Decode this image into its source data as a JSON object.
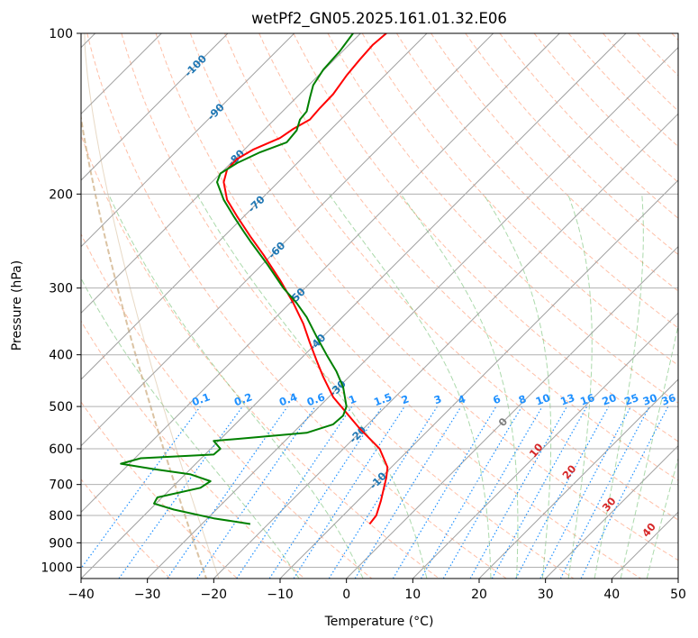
{
  "chart_data": {
    "type": "line",
    "title": "wetPf2_GN05.2025.161.01.32.E06",
    "xlabel": "Temperature (°C)",
    "ylabel": "Pressure (hPa)",
    "xlim": [
      -40,
      50
    ],
    "ylim": [
      1050,
      100
    ],
    "y_scale": "log",
    "x_ticks": [
      -40,
      -30,
      -20,
      -10,
      0,
      10,
      20,
      30,
      40,
      50
    ],
    "x_tick_labels": [
      "−40",
      "−30",
      "−20",
      "−10",
      "0",
      "10",
      "20",
      "30",
      "40",
      "50"
    ],
    "y_ticks": [
      100,
      200,
      300,
      400,
      500,
      600,
      700,
      800,
      900,
      1000
    ],
    "y_tick_labels": [
      "100",
      "200",
      "300",
      "400",
      "500",
      "600",
      "700",
      "800",
      "900",
      "1000"
    ],
    "grid": true,
    "series": [
      {
        "color": "#ff0000",
        "points": [
          [
            3.5,
            830
          ],
          [
            4.5,
            800
          ],
          [
            5.2,
            750
          ],
          [
            6,
            680
          ],
          [
            6.2,
            650
          ],
          [
            5,
            600
          ],
          [
            2,
            550
          ],
          [
            -2,
            480
          ],
          [
            -3.5,
            440
          ],
          [
            -4.5,
            410
          ],
          [
            -5.5,
            380
          ],
          [
            -6.5,
            350
          ],
          [
            -8,
            320
          ],
          [
            -10,
            290
          ],
          [
            -12.5,
            260
          ],
          [
            -14.5,
            240
          ],
          [
            -16.5,
            220
          ],
          [
            -18,
            205
          ],
          [
            -18.5,
            190
          ],
          [
            -18,
            180
          ],
          [
            -16.5,
            172
          ],
          [
            -14,
            165
          ],
          [
            -10,
            157
          ],
          [
            -8,
            151
          ],
          [
            -5.5,
            145
          ],
          [
            -4,
            138
          ],
          [
            -2,
            130
          ],
          [
            0,
            120
          ],
          [
            2,
            112
          ],
          [
            4,
            105
          ],
          [
            6,
            100
          ]
        ]
      },
      {
        "color": "#008000",
        "points": [
          [
            -14.5,
            830
          ],
          [
            -20,
            810
          ],
          [
            -26,
            780
          ],
          [
            -29,
            760
          ],
          [
            -28.5,
            740
          ],
          [
            -22,
            710
          ],
          [
            -20.5,
            690
          ],
          [
            -23.5,
            670
          ],
          [
            -29,
            655
          ],
          [
            -34,
            640
          ],
          [
            -31,
            625
          ],
          [
            -20,
            615
          ],
          [
            -19,
            600
          ],
          [
            -20,
            580
          ],
          [
            -16.5,
            575
          ],
          [
            -6,
            560
          ],
          [
            -2,
            540
          ],
          [
            -0.5,
            520
          ],
          [
            0,
            500
          ],
          [
            -0.5,
            460
          ],
          [
            -1.5,
            430
          ],
          [
            -3,
            400
          ],
          [
            -4.5,
            370
          ],
          [
            -6,
            340
          ],
          [
            -7.5,
            320
          ],
          [
            -9.5,
            300
          ],
          [
            -12,
            270
          ],
          [
            -14.5,
            245
          ],
          [
            -15.5,
            235
          ],
          [
            -17,
            220
          ],
          [
            -18.5,
            205
          ],
          [
            -19.5,
            190
          ],
          [
            -19,
            183
          ],
          [
            -16.5,
            175
          ],
          [
            -13,
            167
          ],
          [
            -9,
            160
          ],
          [
            -7.5,
            152
          ],
          [
            -7,
            145
          ],
          [
            -6,
            140
          ],
          [
            -5.5,
            132
          ],
          [
            -5,
            125
          ],
          [
            -3.5,
            117
          ],
          [
            -1,
            108
          ],
          [
            1,
            100
          ]
        ]
      }
    ],
    "isotherm_labels": [
      "-100",
      "-90",
      "-80",
      "-70",
      "-60",
      "-50",
      "-40",
      "-30",
      "-20",
      "-10"
    ],
    "mixing_ratio_labels": [
      "0.1",
      "0.2",
      "0.4",
      "0.6",
      "1",
      "1.5",
      "2",
      "3",
      "4",
      "6",
      "8",
      "10",
      "13",
      "16",
      "20",
      "25",
      "30",
      "36"
    ],
    "moist_adiabat_labels": [
      "0",
      "10",
      "20",
      "30",
      "40"
    ],
    "colors": {
      "temperature": "#ff0000",
      "dewpoint": "#008000",
      "isotherm": "#a0a0a0",
      "isotherm_label": "#1f77b4",
      "dry_adiabat": "#ff7f50",
      "moist_adiabat": "#2ca02c",
      "mixing_ratio": "#1e90ff",
      "moist_label": "#d62728",
      "moist_zero_label": "#7f7f7f",
      "boundary_curve": "#d2b48c"
    }
  }
}
